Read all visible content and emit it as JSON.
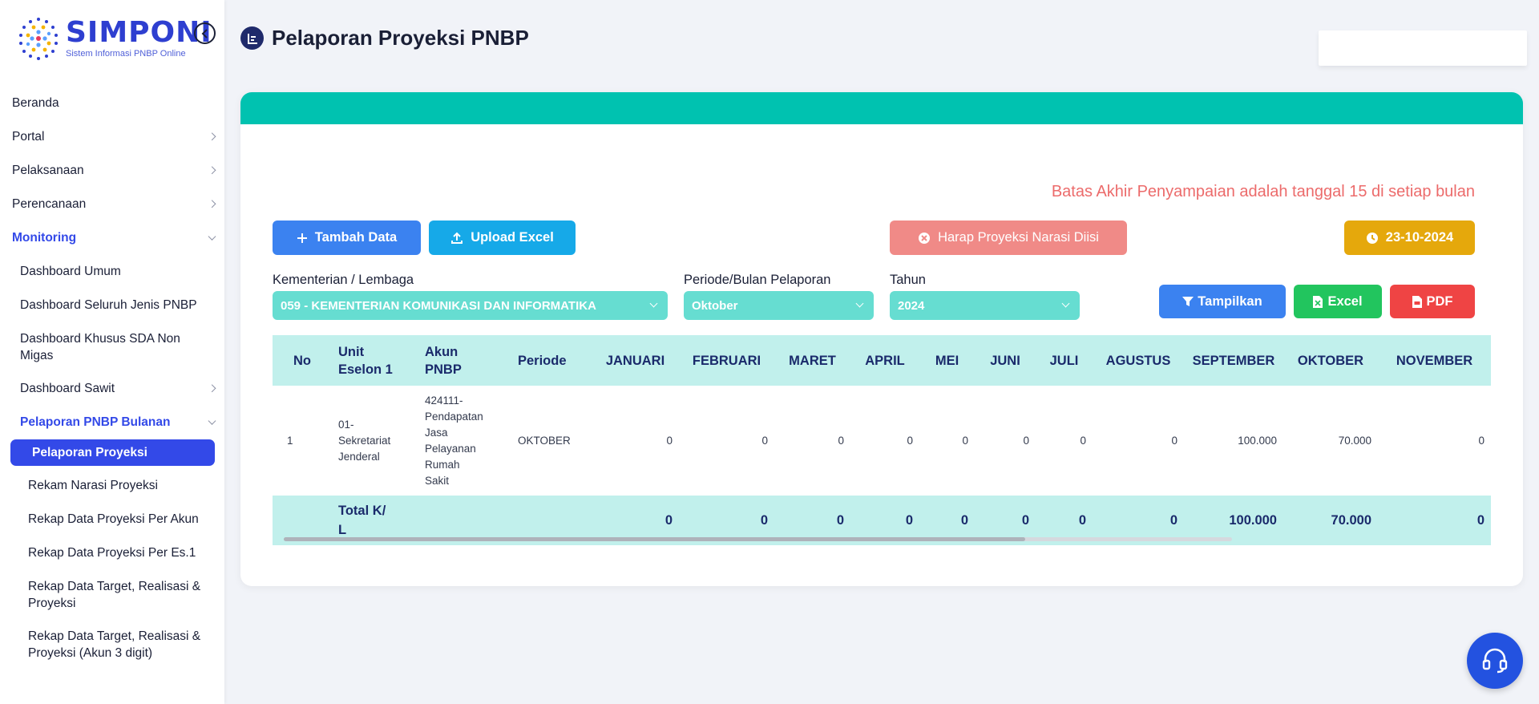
{
  "brand": {
    "name": "SIMPONI",
    "tagline": "Sistem Informasi PNBP Online"
  },
  "sidebar": {
    "items": [
      {
        "label": "Beranda"
      },
      {
        "label": "Portal"
      },
      {
        "label": "Pelaksanaan"
      },
      {
        "label": "Perencanaan"
      },
      {
        "label": "Monitoring"
      },
      {
        "label": "Dashboard Umum"
      },
      {
        "label": "Dashboard Seluruh Jenis PNBP"
      },
      {
        "label": "Dashboard Khusus SDA Non Migas"
      },
      {
        "label": "Dashboard Sawit"
      },
      {
        "label": "Pelaporan PNBP Bulanan"
      },
      {
        "label": "Pelaporan Proyeksi"
      },
      {
        "label": "Rekam Narasi Proyeksi"
      },
      {
        "label": "Rekap Data Proyeksi Per Akun"
      },
      {
        "label": "Rekap Data Proyeksi Per Es.1"
      },
      {
        "label": "Rekap Data Target, Realisasi & Proyeksi"
      },
      {
        "label": "Rekap Data Target, Realisasi & Proyeksi (Akun 3 digit)"
      }
    ]
  },
  "header": {
    "title": "Pelaporan Proyeksi PNBP"
  },
  "main": {
    "deadline_note": "Batas Akhir Penyampaian adalah tanggal 15 di setiap bulan",
    "buttons": {
      "tambah": "Tambah Data",
      "upload": "Upload Excel",
      "narasi": "Harap Proyeksi Narasi Diisi",
      "date": "23-10-2024",
      "tampilkan": "Tampilkan",
      "excel": "Excel",
      "pdf": "PDF"
    },
    "filters": {
      "kl_label": "Kementerian / Lembaga",
      "kl_value": "059 - KEMENTERIAN KOMUNIKASI DAN INFORMATIKA",
      "periode_label": "Periode/Bulan Pelaporan",
      "periode_value": "Oktober",
      "tahun_label": "Tahun",
      "tahun_value": "2024"
    },
    "table": {
      "headers": {
        "no": "No",
        "unit_a": "Unit",
        "unit_b": "Eselon 1",
        "akun_a": "Akun",
        "akun_b": "PNBP",
        "periode": "Periode",
        "jan": "JANUARI",
        "feb": "FEBRUARI",
        "mar": "MARET",
        "apr": "APRIL",
        "mei": "MEI",
        "jun": "JUNI",
        "jul": "JULI",
        "agu": "AGUSTUS",
        "sep": "SEPTEMBER",
        "okt": "OKTOBER",
        "nov": "NOVEMBER"
      },
      "row": {
        "no": "1",
        "unit": [
          "01-",
          "Sekretariat",
          "Jenderal"
        ],
        "akun": [
          "424111-",
          "Pendapatan",
          "Jasa",
          "Pelayanan",
          "Rumah",
          "Sakit"
        ],
        "periode": "OKTOBER",
        "jan": "0",
        "feb": "0",
        "mar": "0",
        "apr": "0",
        "mei": "0",
        "jun": "0",
        "jul": "0",
        "agu": "0",
        "sep": "100.000",
        "okt": "70.000",
        "nov": "0"
      },
      "total": {
        "label_a": "Total K/",
        "label_b": "L",
        "jan": "0",
        "feb": "0",
        "mar": "0",
        "apr": "0",
        "mei": "0",
        "jun": "0",
        "jul": "0",
        "agu": "0",
        "sep": "100.000",
        "okt": "70.000",
        "nov": "0"
      }
    }
  },
  "colors": {
    "brand": "#2e3fd0",
    "teal_header": "#00c2b0",
    "select_bg": "#66ddd1",
    "table_header_bg": "#c1f0ec",
    "active_nav": "#3349e8",
    "deadline_text": "#ec6b6b"
  }
}
